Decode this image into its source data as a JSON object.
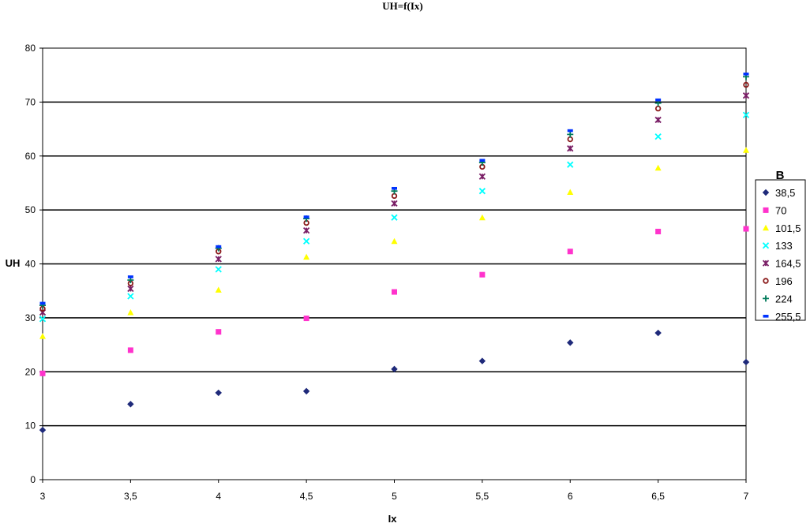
{
  "chart_data": {
    "type": "scatter",
    "title": "UH=f(Ix)",
    "xlabel": "Ix",
    "ylabel": "UH",
    "xlim": [
      3,
      7
    ],
    "ylim": [
      0,
      80
    ],
    "x_ticks": [
      "3",
      "3,5",
      "4",
      "4,5",
      "5",
      "5,5",
      "6",
      "6,5",
      "7"
    ],
    "y_ticks": [
      "0",
      "10",
      "20",
      "30",
      "40",
      "50",
      "60",
      "70",
      "80"
    ],
    "grid": "horizontal major",
    "legend_title": "B",
    "legend_position": "right",
    "x": [
      3,
      3.5,
      4,
      4.5,
      5,
      5.5,
      6,
      6.5,
      7
    ],
    "series": [
      {
        "name": "38,5",
        "marker": "diamond",
        "color": "#1f2a7a",
        "values": [
          9.2,
          14,
          16.1,
          16.4,
          20.5,
          22,
          25.4,
          27.2,
          21.8
        ]
      },
      {
        "name": "70",
        "marker": "square",
        "color": "#ff33cc",
        "values": [
          19.7,
          24,
          27.4,
          29.9,
          34.8,
          38,
          42.3,
          46,
          46.5
        ]
      },
      {
        "name": "101,5",
        "marker": "triangle",
        "color": "#ffff00",
        "values": [
          26.6,
          31,
          35.2,
          41.3,
          44.2,
          48.6,
          53.3,
          57.8,
          61.1
        ]
      },
      {
        "name": "133",
        "marker": "x",
        "color": "#00ffff",
        "values": [
          29.8,
          34,
          39,
          44.2,
          48.6,
          53.5,
          58.4,
          63.6,
          67.6
        ]
      },
      {
        "name": "164,5",
        "marker": "star",
        "color": "#7a1f66",
        "values": [
          31,
          35.4,
          40.9,
          46.2,
          51.2,
          56.2,
          61.4,
          66.7,
          71.2
        ]
      },
      {
        "name": "196",
        "marker": "circle",
        "color": "#8a1a1a",
        "values": [
          31.7,
          36.4,
          42.3,
          47.6,
          52.6,
          58,
          63.1,
          68.8,
          73.2
        ]
      },
      {
        "name": "224",
        "marker": "plus",
        "color": "#007a5a",
        "values": [
          32.3,
          37,
          42.9,
          48.4,
          53.5,
          58.8,
          64,
          69.8,
          74.7
        ]
      },
      {
        "name": "255,5",
        "marker": "dash",
        "color": "#0033ff",
        "values": [
          32.7,
          37.6,
          43.2,
          48.7,
          54,
          59.2,
          64.7,
          70.4,
          75.2
        ]
      }
    ]
  }
}
